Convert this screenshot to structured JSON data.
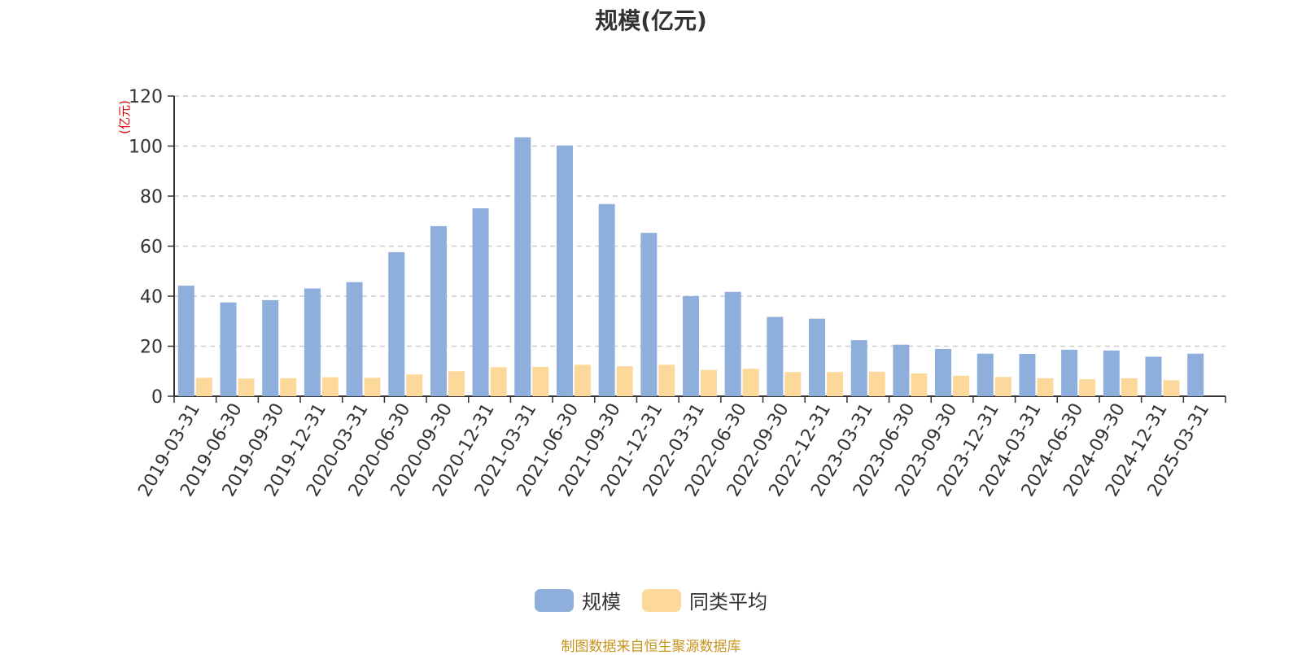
{
  "chart_data": {
    "type": "bar",
    "title": "规模(亿元)",
    "ylabel": "(亿元)",
    "ylim": [
      0,
      120
    ],
    "yticks": [
      0,
      20,
      40,
      60,
      80,
      100,
      120
    ],
    "grid": true,
    "legend_position": "bottom",
    "categories": [
      "2019-03-31",
      "2019-06-30",
      "2019-09-30",
      "2019-12-31",
      "2020-03-31",
      "2020-06-30",
      "2020-09-30",
      "2020-12-31",
      "2021-03-31",
      "2021-06-30",
      "2021-09-30",
      "2021-12-31",
      "2022-03-31",
      "2022-06-30",
      "2022-09-30",
      "2022-12-31",
      "2023-03-31",
      "2023-06-30",
      "2023-09-30",
      "2023-12-31",
      "2024-03-31",
      "2024-06-30",
      "2024-09-30",
      "2024-12-31",
      "2025-03-31"
    ],
    "series": [
      {
        "name": "规模",
        "color": "#8eaedb",
        "values": [
          44.2,
          37.5,
          38.4,
          43.1,
          45.6,
          57.6,
          68.0,
          75.1,
          103.5,
          100.2,
          76.8,
          65.3,
          40.0,
          41.7,
          31.7,
          31.0,
          22.4,
          20.6,
          18.9,
          17.0,
          16.9,
          18.6,
          18.3,
          15.8,
          17.0
        ]
      },
      {
        "name": "同类平均",
        "color": "#fcd99a",
        "values": [
          7.4,
          7.1,
          7.2,
          7.6,
          7.4,
          8.7,
          10.0,
          11.6,
          11.7,
          12.6,
          12.0,
          12.6,
          10.5,
          11.0,
          9.7,
          9.7,
          9.8,
          9.1,
          8.2,
          7.7,
          7.2,
          6.8,
          7.2,
          6.4,
          null
        ]
      }
    ]
  },
  "legend": {
    "items": [
      "规模",
      "同类平均"
    ]
  },
  "source_note": "制图数据来自恒生聚源数据库",
  "colors": {
    "axis": "#333333",
    "grid": "#cccccc",
    "ylabel": "#e00000",
    "source": "#c8941e"
  }
}
